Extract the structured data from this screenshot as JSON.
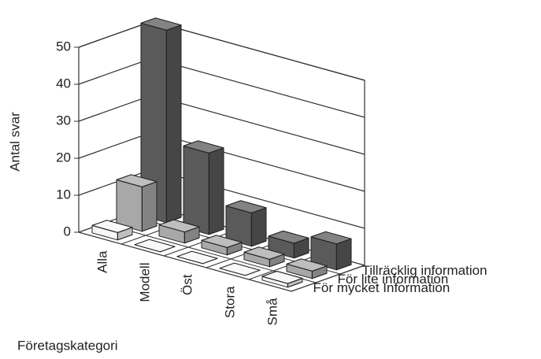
{
  "chart_data": {
    "type": "bar3d",
    "ylabel": "Antal svar",
    "xlabel": "Företagskategori",
    "categories": [
      "Alla",
      "Modell",
      "Öst",
      "Stora",
      "Små"
    ],
    "series": [
      {
        "name": "Tillräcklig information",
        "color": "#5a5a5a",
        "values": [
          52,
          22,
          9,
          4,
          7
        ]
      },
      {
        "name": "För lite information",
        "color": "#a8a8a8",
        "values": [
          12,
          3,
          2,
          2,
          2
        ]
      },
      {
        "name": "För mycket Information",
        "color": "#f6f6f6",
        "values": [
          2,
          0,
          0,
          0,
          1
        ]
      }
    ],
    "ylim": [
      0,
      50
    ],
    "yticks": [
      0,
      10,
      20,
      30,
      40,
      50
    ],
    "grid": true
  }
}
